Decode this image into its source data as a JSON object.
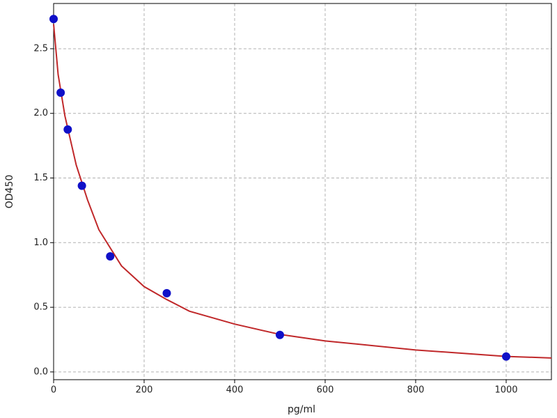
{
  "chart_data": {
    "type": "scatter",
    "x_label": "pg/ml",
    "y_label": "OD450",
    "x": [
      0,
      15.6,
      31.25,
      62.5,
      125,
      250,
      500,
      1000
    ],
    "values": [
      2.73,
      2.16,
      1.875,
      1.44,
      0.894,
      0.609,
      0.286,
      0.119
    ],
    "color": "#1010c8",
    "fit": {
      "x": [
        0,
        10,
        25,
        50,
        75,
        100,
        150,
        200,
        250,
        300,
        400,
        500,
        600,
        800,
        1000,
        1100
      ],
      "values": [
        2.69,
        2.3,
        1.98,
        1.6,
        1.33,
        1.1,
        0.82,
        0.66,
        0.56,
        0.47,
        0.37,
        0.29,
        0.24,
        0.17,
        0.12,
        0.108
      ],
      "color": "#c0282a"
    },
    "xlim": [
      0,
      1100
    ],
    "ylim": [
      -0.06,
      2.85
    ],
    "xticks": [
      0,
      200,
      400,
      600,
      800,
      1000
    ],
    "yticks": [
      {
        "value": 0,
        "label": "0.0"
      },
      0.5,
      {
        "value": 1,
        "label": "1.0"
      },
      1.5,
      {
        "value": 2,
        "label": "2.0"
      },
      2.5
    ],
    "grid": true
  }
}
